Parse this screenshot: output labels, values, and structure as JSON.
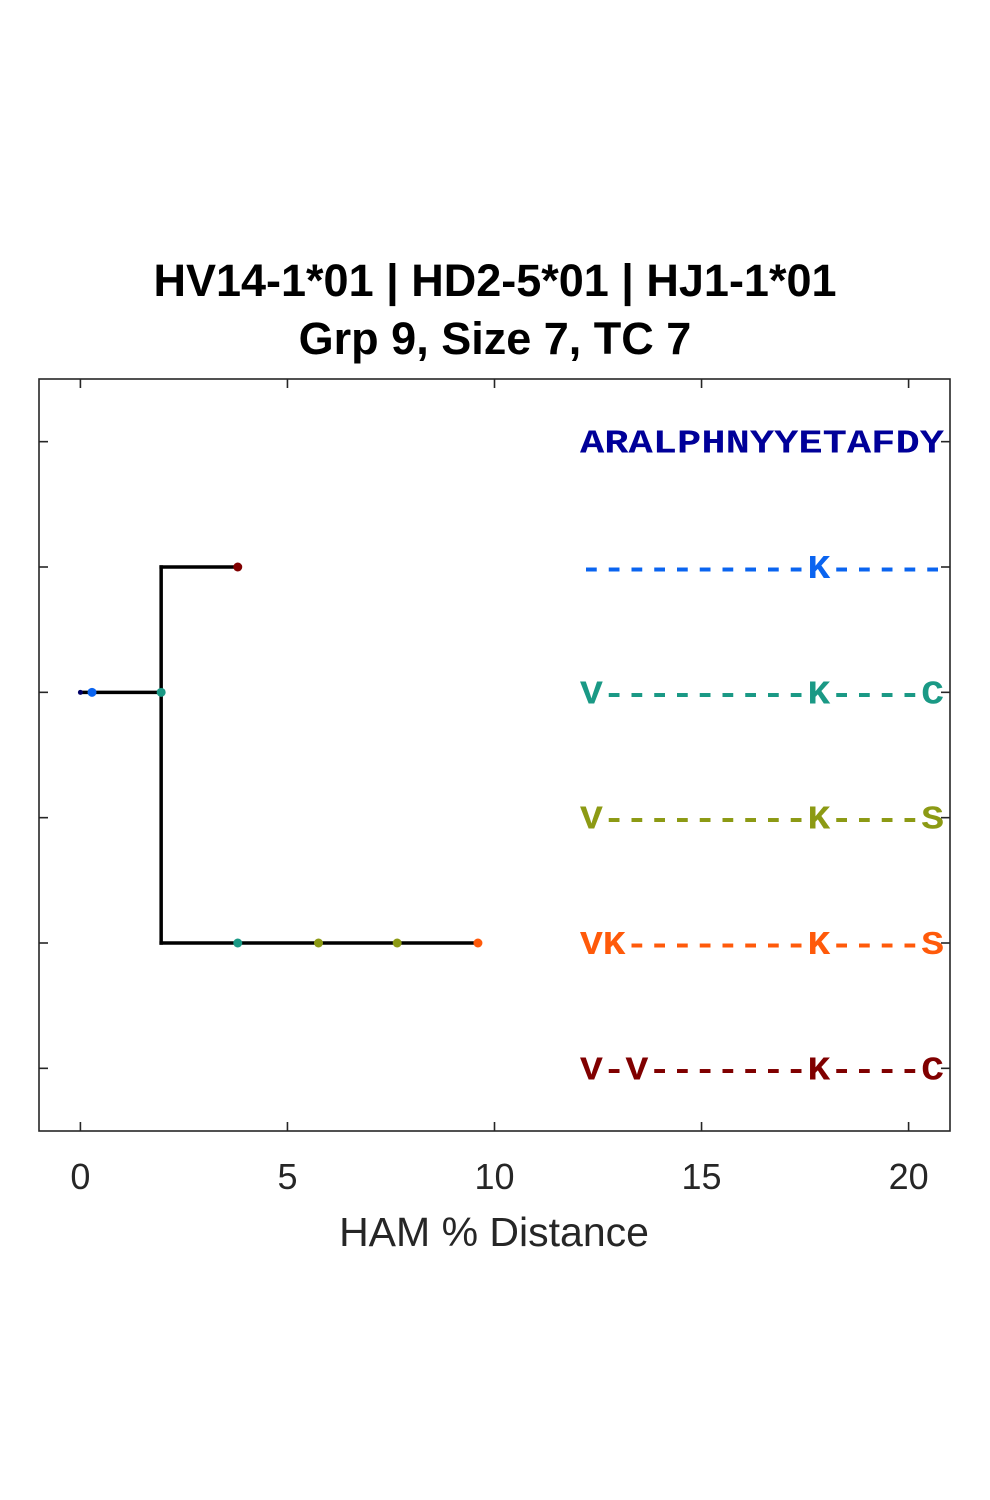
{
  "title": {
    "line1": "HV14-1*01 | HD2-5*01 | HJ1-1*01",
    "line2": "Grp 9, Size 7, TC 7"
  },
  "chart_data": {
    "type": "tree",
    "xlabel": "HAM % Distance",
    "xlim": [
      -1,
      21
    ],
    "xticks": [
      0,
      5,
      10,
      15,
      20
    ],
    "ylim": [
      0.5,
      6.5
    ],
    "grid": false,
    "colors": {
      "axis": "#262626",
      "branch": "#000000"
    },
    "branches": [
      {
        "from": [
          0,
          4
        ],
        "to": [
          1.95,
          4
        ]
      },
      {
        "from": [
          1.95,
          5
        ],
        "to": [
          1.95,
          2
        ]
      },
      {
        "from": [
          1.95,
          5
        ],
        "to": [
          3.8,
          5
        ]
      },
      {
        "from": [
          1.95,
          2
        ],
        "to": [
          9.6,
          2
        ]
      }
    ],
    "nodes": [
      {
        "x": 0.0,
        "y": 4,
        "color": "#000066"
      },
      {
        "x": 0.28,
        "y": 4,
        "color": "#0a64f0"
      },
      {
        "x": 1.95,
        "y": 4,
        "color": "#1a9985"
      },
      {
        "x": 3.8,
        "y": 5,
        "color": "#800000"
      },
      {
        "x": 3.8,
        "y": 2,
        "color": "#1a9985"
      },
      {
        "x": 5.75,
        "y": 2,
        "color": "#8c9a14"
      },
      {
        "x": 7.65,
        "y": 2,
        "color": "#8c9a14"
      },
      {
        "x": 9.6,
        "y": 2,
        "color": "#ff5a0a"
      }
    ],
    "sequences": [
      {
        "text": "ARALPHNYYETAFDY",
        "y": 6,
        "color": "#000099"
      },
      {
        "text": "----------K-----",
        "y": 5,
        "color": "#0a64f0"
      },
      {
        "text": "V---------K----C",
        "y": 4,
        "color": "#1a9985"
      },
      {
        "text": "V---------K----S",
        "y": 3,
        "color": "#8c9a14"
      },
      {
        "text": "VK--------K----S",
        "y": 2,
        "color": "#ff5a0a"
      },
      {
        "text": "V-V-------K----C",
        "y": 1,
        "color": "#800000"
      }
    ]
  }
}
